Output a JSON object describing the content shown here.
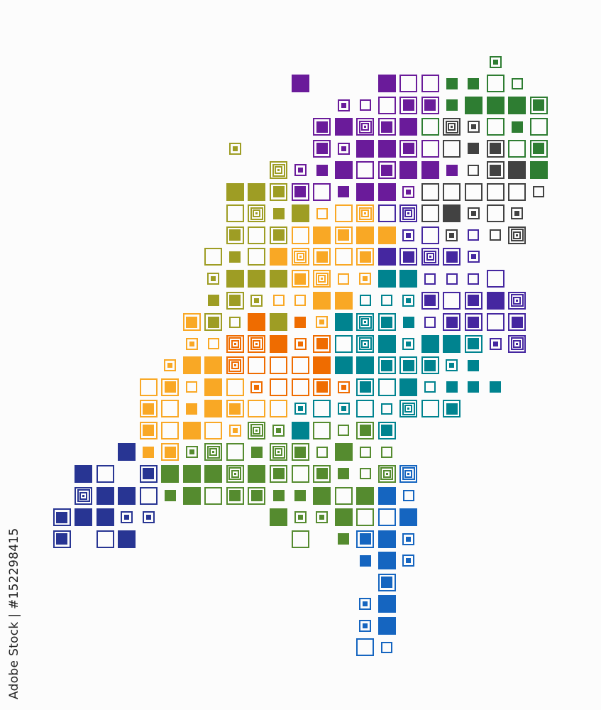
{
  "watermark": {
    "vertical_text": "Adobe Stock | #152298415",
    "diagonal_text": "Adobe Stock"
  },
  "palette": {
    "P": "#6a1b9a",
    "G": "#2e7d32",
    "K": "#424242",
    "O": "#9e9d24",
    "Y": "#f9a825",
    "R": "#ef6c00",
    "T": "#00838f",
    "V": "#4527a0",
    "L": "#558b2f",
    "N": "#283593",
    "B": "#1565c0"
  },
  "cell_styles": {
    "f": "filled-large",
    "b": "outlined-with-fill",
    "o": "outline-large",
    "s": "filled-small",
    "d": "small-outline-with-dot",
    "t": "outline-small",
    "n": "nested-concentric"
  },
  "grid_rows": [
    ".. .. .. .. .. .. .. .. .. .. .. .. .. .. .. .. .. .. .. .. Gd .. ..",
    ".. .. .. .. .. .. .. .. .. .. .. Pf .. .. .. Pf Po Po Gs Gs Go Gt ..",
    ".. .. .. .. .. .. .. .. .. .. .. .. .. Pd Pt Po Pb Pb Gs Gf Gf Gf Gb",
    ".. .. .. .. .. .. .. .. .. .. .. .. Pb Pf Pn Pb Pf Go Kn Kd Go Gs Go",
    ".. .. .. .. .. .. .. .. Od .. .. .. Pb Pd Pf Pf Pb Po Ko Ks Kb Go Gb",
    ".. .. .. .. .. .. .. .. .. .. On Pd Ps Pf Po Pb Pf Pf Ps Kt Kb Kf Gf",
    ".. .. .. .. .. .. .. .. Of Of Ob Pb Po Ps Pf Pf Pd Ko Ko Ko Ko Ko Kt",
    ".. .. .. .. .. .. .. .. Oo On Os Of Yt Yo Yn Vo Vn Ko Kf Kd Ko Kd ..",
    ".. .. .. .. .. .. .. .. Ob Oo Ob Yo Yf Yb Yf Yf Vd Vo Kd Vt Kt Kn ..",
    ".. .. .. .. .. .. .. Oo Os Oo Yf Yn Yb Yo Yb Vf Vb Vn Vb Vd .. .. ..",
    ".. .. .. .. .. .. .. Od Of Of Of Yb Yn Yt Yd Tf Tf Vt Vt Vt Vo .. ..",
    ".. .. .. .. .. .. .. Os Ob Od Yt Yt Yf Yf Tt Tt Td Vb Vo Vb Vf Vn ..",
    ".. .. .. .. .. .. Yb Ob Ot Rf Of Rs Yd Tf Tn Tb Ts Vt Vb Vb Vo Vb ..",
    ".. .. .. .. .. .. Yd Yt Rn Rn Rf Rd Rb To Tn Tf Td Tf Tf Tb Vd Vn ..",
    ".. .. .. .. .. Yd Yf Yf Rn Ro Ro Ro Rf Tf Tf Tb Tb Tb Td Ts .. .. ..",
    ".. .. .. .. Yo Yb Yt Yf Yo Rd Ro Ro Rb Rd Tb To Tf Tt Ts Ts Ts .. ..",
    ".. .. .. .. Yb Yo Ys Yf Yb Yo Yo Td To Td To Tt Tn To Tb .. .. .. ..",
    ".. .. .. .. Yb Yo Yf Yo Yd Ln Ld Tf Lo Lt Lb Tb .. .. .. .. .. .. ..",
    ".. .. .. Nf Ys Yb Ld Ln Lo Ls Ln Lb Lt Lf Lt Lt .. .. .. .. .. .. ..",
    ".. Nf No .. Nb Lf Lf Lf Ln Lf Lb Lo Lb Ls Lt Ln Bn .. .. .. .. .. ..",
    ".. Nn Nf Nf No Ls Lf Lo Lb Lb Ls Ls Lf Lo Lf Bf Bt .. .. .. .. .. ..",
    "Nb Nf Nf Nd Nd .. .. .. .. .. Lf Ld Ld Lf Lo Bo Bf .. .. .. .. .. ..",
    "Nb .. No Nf .. .. .. .. .. .. .. Lo .. Ls Bb Bf Bd .. .. .. .. .. ..",
    ".. .. .. .. .. .. .. .. .. .. .. .. .. .. Bs Bf Bd .. .. .. .. .. ..",
    ".. .. .. .. .. .. .. .. .. .. .. .. .. .. .. Bb .. .. .. .. .. .. ..",
    ".. .. .. .. .. .. .. .. .. .. .. .. .. .. Bd Bf .. .. .. .. .. .. ..",
    ".. .. .. .. .. .. .. .. .. .. .. .. .. .. Bd Bf .. .. .. .. .. .. ..",
    ".. .. .. .. .. .. .. .. .. .. .. .. .. .. Bo Bt .. .. .. .. .. .. .."
  ]
}
